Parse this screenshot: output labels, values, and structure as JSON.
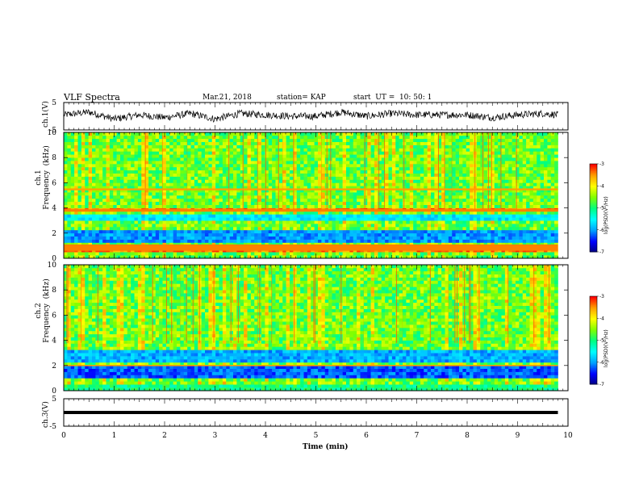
{
  "header": {
    "title": "VLF Spectra",
    "date": "Mar.21, 2018",
    "station": "station= KAP",
    "start": "start  UT =  10: 50: 1"
  },
  "colors": {
    "trace": "#000000",
    "colormap": [
      "#000080",
      "#0000ff",
      "#00a0ff",
      "#00ffff",
      "#00ff80",
      "#80ff00",
      "#ffff00",
      "#ffa000",
      "#ff0000",
      "#ffffff"
    ]
  },
  "chart_data": [
    {
      "type": "line",
      "panel": "ch1-waveform",
      "ylabel": "ch.1(V)",
      "ylim": [
        -5,
        5
      ],
      "yticks": [
        "5",
        "-5"
      ],
      "xlim": [
        0,
        10
      ],
      "series": [
        {
          "x": [
            0,
            0.5,
            1.0,
            1.5,
            2.0,
            2.5,
            3.0,
            3.5,
            4.0,
            4.5,
            5.0,
            5.5,
            6.0,
            6.5,
            7.0,
            7.5,
            8.0,
            8.5,
            9.0,
            9.5,
            9.8
          ],
          "values": [
            0.5,
            1.5,
            -1.0,
            0.5,
            -0.5,
            1.0,
            -1.0,
            1.0,
            0.5,
            0,
            0,
            1.5,
            0,
            1.0,
            0.5,
            0.5,
            0.5,
            -0.5,
            0.5,
            1.0,
            0.5
          ]
        }
      ]
    },
    {
      "type": "heatmap",
      "panel": "ch1-spectrogram",
      "ylabel": "ch.1\nFrequency  (kHz)",
      "ylim": [
        0,
        10
      ],
      "yticks": [
        "0",
        "2",
        "4",
        "6",
        "8",
        "10"
      ],
      "xlim": [
        0,
        10
      ],
      "bands": [
        {
          "kHz": [
            3.0,
            3.6
          ],
          "level": -5.6
        },
        {
          "kHz": [
            1.2,
            2.2
          ],
          "level": -6.0
        },
        {
          "kHz": [
            0.6,
            1.1
          ],
          "level": -3.4
        },
        {
          "kHz": [
            3.7,
            3.9
          ],
          "level": -3.4
        },
        {
          "kHz": [
            5.4,
            5.55
          ],
          "level": -3.5
        }
      ],
      "colorbar": {
        "ticks": [
          "-3",
          "-4",
          "-5",
          "-6",
          "-7"
        ],
        "label": "log(PSD)(V²/Hz)",
        "range": [
          -7,
          -3
        ]
      }
    },
    {
      "type": "heatmap",
      "panel": "ch2-spectrogram",
      "ylabel": "ch.2\nFrequency  (kHz)",
      "ylim": [
        0,
        10
      ],
      "yticks": [
        "0",
        "2",
        "4",
        "6",
        "8",
        "10"
      ],
      "xlim": [
        0,
        10
      ],
      "bands": [
        {
          "kHz": [
            2.2,
            3.2
          ],
          "level": -5.9
        },
        {
          "kHz": [
            0.9,
            1.9
          ],
          "level": -6.2
        },
        {
          "kHz": [
            1.95,
            2.05
          ],
          "level": -3.5
        },
        {
          "kHz": [
            0.1,
            0.6
          ],
          "level": -5.0
        }
      ],
      "colorbar": {
        "ticks": [
          "-3",
          "-4",
          "-5",
          "-6",
          "-7"
        ],
        "label": "log(PSD)(V²/Hz)",
        "range": [
          -7,
          -3
        ]
      }
    },
    {
      "type": "line",
      "panel": "ch3-waveform",
      "ylabel": "ch.3(V)",
      "ylim": [
        -5,
        5
      ],
      "yticks": [
        "5",
        "-5"
      ],
      "xlim": [
        0,
        10
      ],
      "xticks": [
        "0",
        "1",
        "2",
        "3",
        "4",
        "5",
        "6",
        "7",
        "8",
        "9",
        "10"
      ],
      "xlabel": "Time  (min)",
      "series": [
        {
          "x": [
            0,
            9.8
          ],
          "values": [
            0,
            0
          ]
        }
      ]
    }
  ]
}
